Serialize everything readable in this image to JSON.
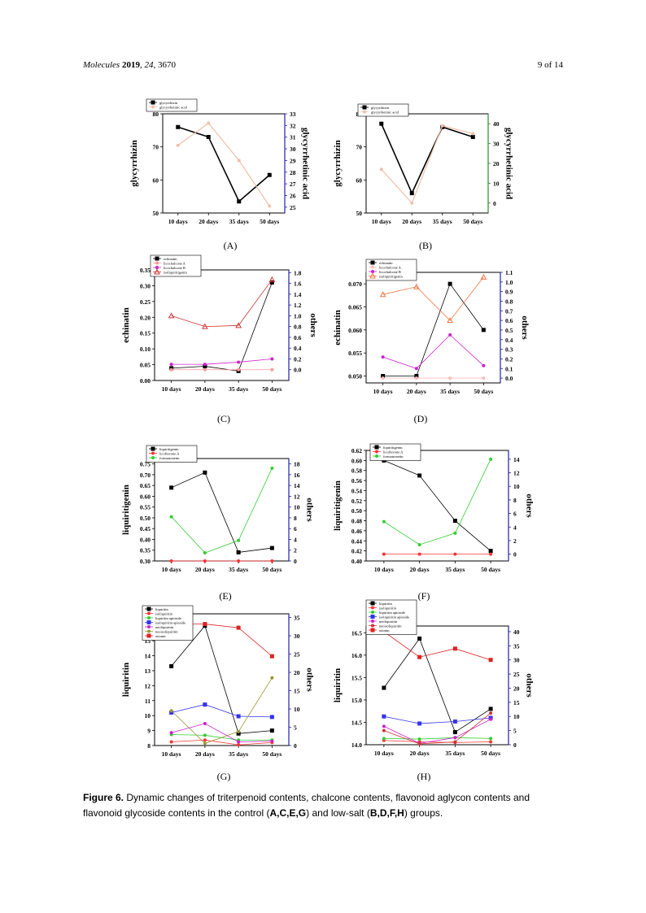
{
  "header": {
    "journal": "Molecules",
    "year": "2019",
    "volume": "24",
    "article": "3670",
    "page": "9 of 14"
  },
  "panels": [
    "(A)",
    "(B)",
    "(C)",
    "(D)",
    "(E)",
    "(F)",
    "(G)",
    "(H)"
  ],
  "caption": {
    "label": "Figure 6.",
    "text_1": "Dynamic changes of triterpenoid contents, chalcone contents, flavonoid aglycon contents and flavonoid glycoside contents in the control (",
    "groups_1": "A,C,E,G",
    "text_2": ") and low-salt (",
    "groups_2": "B,D,F,H",
    "text_3": ") groups."
  },
  "chart_data": [
    {
      "id": "A",
      "type": "line",
      "categories": [
        "10 days",
        "20 days",
        "35 days",
        "50 days"
      ],
      "ylabel": "glycyrrhizin",
      "ylabel2": "glycyrrhetinic acid",
      "ylim": [
        50,
        80
      ],
      "yticks": [
        50,
        60,
        70,
        80
      ],
      "ylim2": [
        24.5,
        33
      ],
      "yticks2": [
        25,
        26,
        27,
        28,
        29,
        30,
        31,
        32,
        33
      ],
      "axis2_color": "#2222aa",
      "series": [
        {
          "name": "glycyrrhizin",
          "axis": "left",
          "color": "#000000",
          "marker": "square",
          "width": 1.6,
          "values": [
            76,
            73,
            53.5,
            61.5
          ]
        },
        {
          "name": "glycyrrhetinic acid",
          "axis": "right",
          "color": "#f0c0a8",
          "marker": "circle",
          "width": 1.2,
          "values": [
            30.3,
            32.2,
            29.0,
            25.1
          ]
        }
      ]
    },
    {
      "id": "B",
      "type": "line",
      "categories": [
        "10 days",
        "20 days",
        "35 days",
        "50 days"
      ],
      "ylabel": "glycyrrhizin",
      "ylabel2": "glycyrrhetinic acid",
      "ylim": [
        50,
        80
      ],
      "yticks": [
        50,
        60,
        70,
        80
      ],
      "ylim2": [
        -5,
        45
      ],
      "yticks2": [
        0,
        10,
        20,
        30,
        40
      ],
      "axis2_color": "#2a8a2a",
      "series": [
        {
          "name": "glycyrrhizin",
          "axis": "left",
          "color": "#000000",
          "marker": "square",
          "width": 1.6,
          "values": [
            77,
            56,
            76,
            73
          ]
        },
        {
          "name": "glycyrrhetinic acid",
          "axis": "right",
          "color": "#f0c0a8",
          "marker": "circle",
          "width": 1.2,
          "values": [
            17,
            0,
            39,
            35
          ]
        }
      ]
    },
    {
      "id": "C",
      "type": "line",
      "categories": [
        "10 days",
        "20 days",
        "35 days",
        "50 days"
      ],
      "ylabel": "echinatin",
      "ylabel2": "others",
      "ylim": [
        0,
        0.35
      ],
      "yticks": [
        0,
        0.05,
        0.1,
        0.15,
        0.2,
        0.25,
        0.3,
        0.35
      ],
      "decimals": 2,
      "ylim2": [
        -0.2,
        1.85
      ],
      "yticks2": [
        0,
        0.2,
        0.4,
        0.6,
        0.8,
        1.0,
        1.2,
        1.4,
        1.6,
        1.8
      ],
      "decimals2": 1,
      "axis2_color": "#2222aa",
      "series": [
        {
          "name": "echinatin",
          "axis": "left",
          "color": "#000000",
          "marker": "square",
          "width": 0.8,
          "values": [
            0.039,
            0.045,
            0.03,
            0.31
          ]
        },
        {
          "name": "licochalcone A",
          "axis": "right",
          "color": "#ff9999",
          "marker": "circle",
          "width": 0.8,
          "values": [
            0.0,
            0.0,
            0.0,
            0.0
          ]
        },
        {
          "name": "licochalcone B",
          "axis": "right",
          "color": "#cc22cc",
          "marker": "circle",
          "width": 0.8,
          "values": [
            0.1,
            0.1,
            0.14,
            0.2
          ]
        },
        {
          "name": "isoliquiritigenin",
          "axis": "right",
          "color": "#cc3333",
          "marker": "triangle",
          "width": 0.8,
          "values": [
            1.0,
            0.8,
            0.82,
            1.67
          ]
        }
      ]
    },
    {
      "id": "D",
      "type": "line",
      "categories": [
        "10 days",
        "20 days",
        "35 days",
        "50 days"
      ],
      "ylabel": "echinatin",
      "ylabel2": "others",
      "ylim": [
        0.0485,
        0.0725
      ],
      "yticks": [
        0.05,
        0.055,
        0.06,
        0.065,
        0.07
      ],
      "decimals": 3,
      "ylim2": [
        -0.05,
        1.1
      ],
      "yticks2": [
        0,
        0.1,
        0.2,
        0.3,
        0.4,
        0.5,
        0.6,
        0.7,
        0.8,
        0.9,
        1.0,
        1.1
      ],
      "decimals2": 1,
      "axis2_color": "#2222aa",
      "series": [
        {
          "name": "echinatin",
          "axis": "left",
          "color": "#000000",
          "marker": "square",
          "width": 0.8,
          "values": [
            0.05,
            0.05,
            0.07,
            0.06
          ]
        },
        {
          "name": "licochalcone A",
          "axis": "right",
          "color": "#ffbbbb",
          "marker": "circle",
          "width": 0.8,
          "values": [
            0.0,
            0.0,
            0.0,
            0.0
          ]
        },
        {
          "name": "licochalcone B",
          "axis": "right",
          "color": "#cc22cc",
          "marker": "circle",
          "width": 0.8,
          "values": [
            0.22,
            0.1,
            0.45,
            0.13
          ]
        },
        {
          "name": "isoliquiritigenin",
          "axis": "right",
          "color": "#ee7744",
          "marker": "triangle",
          "width": 0.8,
          "values": [
            0.87,
            0.95,
            0.6,
            1.05
          ]
        }
      ]
    },
    {
      "id": "E",
      "type": "line",
      "categories": [
        "10 days",
        "20 days",
        "35 days",
        "50 days"
      ],
      "ylabel": "liquiritigenin",
      "ylabel2": "others",
      "ylim": [
        0.3,
        0.775
      ],
      "yticks": [
        0.3,
        0.35,
        0.4,
        0.45,
        0.5,
        0.55,
        0.6,
        0.65,
        0.7,
        0.75
      ],
      "decimals": 2,
      "ylim2": [
        0,
        19
      ],
      "yticks2": [
        0,
        2,
        4,
        6,
        8,
        10,
        12,
        14,
        16,
        18
      ],
      "axis2_color": "#2222aa",
      "series": [
        {
          "name": "liquiritigenin",
          "axis": "left",
          "color": "#000000",
          "marker": "square",
          "width": 0.8,
          "values": [
            0.64,
            0.71,
            0.34,
            0.36
          ]
        },
        {
          "name": "licoflavone A",
          "axis": "right",
          "color": "#ff3333",
          "marker": "circle",
          "width": 0.8,
          "values": [
            0.0,
            0.0,
            0.0,
            0.0
          ]
        },
        {
          "name": "formononetin",
          "axis": "right",
          "color": "#33cc33",
          "marker": "circle",
          "width": 0.8,
          "values": [
            8.2,
            1.5,
            3.8,
            17.2
          ]
        }
      ]
    },
    {
      "id": "F",
      "type": "line",
      "categories": [
        "10 days",
        "20 days",
        "35 days",
        "50 days"
      ],
      "ylabel": "liquiritigenin",
      "ylabel2": "others",
      "ylim": [
        0.4,
        0.62
      ],
      "yticks": [
        0.4,
        0.42,
        0.44,
        0.46,
        0.48,
        0.5,
        0.52,
        0.54,
        0.56,
        0.58,
        0.6,
        0.62
      ],
      "decimals": 2,
      "ylim2": [
        -1,
        15.3
      ],
      "yticks2": [
        0,
        2,
        4,
        6,
        8,
        10,
        12,
        14
      ],
      "axis2_color": "#2222aa",
      "series": [
        {
          "name": "liquiritigenin",
          "axis": "left",
          "color": "#000000",
          "marker": "square",
          "width": 0.8,
          "values": [
            0.6,
            0.57,
            0.48,
            0.42
          ]
        },
        {
          "name": "licoflavone A",
          "axis": "right",
          "color": "#ff3333",
          "marker": "circle",
          "width": 0.8,
          "values": [
            0,
            0,
            0,
            0
          ]
        },
        {
          "name": "formononetin",
          "axis": "right",
          "color": "#33cc33",
          "marker": "circle",
          "width": 0.8,
          "values": [
            4.8,
            1.4,
            3.1,
            14
          ]
        }
      ]
    },
    {
      "id": "G",
      "type": "line",
      "categories": [
        "10 days",
        "20 days",
        "35 days",
        "50 days"
      ],
      "ylabel": "liquiritin",
      "ylabel2": "others",
      "ylim": [
        8,
        16.8
      ],
      "yticks": [
        8,
        9,
        10,
        11,
        12,
        13,
        14,
        15,
        16
      ],
      "ylim2": [
        0,
        36
      ],
      "yticks2": [
        0,
        5,
        10,
        15,
        20,
        25,
        30,
        35
      ],
      "axis2_color": "#2222aa",
      "series": [
        {
          "name": "liquiritin",
          "axis": "left",
          "color": "#000000",
          "marker": "square",
          "width": 0.8,
          "values": [
            13.3,
            16.0,
            8.8,
            9.0
          ]
        },
        {
          "name": "isoliquiritin",
          "axis": "right",
          "color": "#ff3333",
          "marker": "circle",
          "width": 0.8,
          "values": [
            1.0,
            1.5,
            0.2,
            0.8
          ]
        },
        {
          "name": "liquiritin apioside",
          "axis": "right",
          "color": "#33cc33",
          "marker": "circle",
          "width": 0.8,
          "values": [
            3.0,
            2.8,
            1.5,
            1.5
          ]
        },
        {
          "name": "isoliquiritin apioside",
          "axis": "right",
          "color": "#3333ee",
          "marker": "square",
          "width": 0.8,
          "values": [
            9.0,
            11.2,
            8.0,
            7.8
          ]
        },
        {
          "name": "neoliquiritin",
          "axis": "right",
          "color": "#cc22cc",
          "marker": "circle",
          "width": 0.8,
          "values": [
            3.5,
            6.0,
            1.0,
            1.2
          ]
        },
        {
          "name": "neoisoliquiritin",
          "axis": "right",
          "color": "#999933",
          "marker": "circle",
          "width": 0.8,
          "values": [
            9.5,
            0.6,
            3.8,
            18.5
          ]
        },
        {
          "name": "ononin",
          "axis": "right",
          "color": "#dd2222",
          "marker": "square",
          "width": 0.8,
          "values": [
            33.2,
            33.2,
            32.2,
            24.4
          ]
        }
      ]
    },
    {
      "id": "H",
      "type": "line",
      "categories": [
        "10 days",
        "20 days",
        "35 days",
        "50 days"
      ],
      "ylabel": "liquiritin",
      "ylabel2": "others",
      "ylim": [
        14.0,
        16.65
      ],
      "yticks": [
        14.0,
        14.5,
        15.0,
        15.5,
        16.0,
        16.5
      ],
      "decimals": 1,
      "ylim2": [
        0,
        42
      ],
      "yticks2": [
        0,
        5,
        10,
        15,
        20,
        25,
        30,
        35,
        40
      ],
      "axis2_color": "#2222aa",
      "series": [
        {
          "name": "liquiritin",
          "axis": "left",
          "color": "#000000",
          "marker": "square",
          "width": 0.8,
          "values": [
            15.27,
            16.37,
            14.28,
            14.8
          ]
        },
        {
          "name": "isoliquiritin",
          "axis": "right",
          "color": "#ff3333",
          "marker": "circle",
          "width": 0.8,
          "values": [
            1.5,
            1.0,
            0.8,
            1.0
          ]
        },
        {
          "name": "liquiritin apioside",
          "axis": "right",
          "color": "#33cc33",
          "marker": "circle",
          "width": 0.8,
          "values": [
            2.2,
            2.0,
            2.5,
            2.2
          ]
        },
        {
          "name": "isoliquiritin apioside",
          "axis": "right",
          "color": "#3333ee",
          "marker": "square",
          "width": 0.8,
          "values": [
            10,
            7.5,
            8.2,
            9.5
          ]
        },
        {
          "name": "neoliquiritin",
          "axis": "right",
          "color": "#cc22cc",
          "marker": "circle",
          "width": 0.8,
          "values": [
            6.5,
            0.5,
            2.5,
            9.0
          ]
        },
        {
          "name": "neoisoliquiritin",
          "axis": "right",
          "color": "#cc3333",
          "marker": "circle",
          "width": 0.8,
          "values": [
            5.0,
            0.3,
            1.0,
            11.2
          ]
        },
        {
          "name": "ononin",
          "axis": "right",
          "color": "#dd2222",
          "marker": "square",
          "width": 0.8,
          "values": [
            40,
            31,
            34,
            30
          ]
        }
      ]
    }
  ]
}
